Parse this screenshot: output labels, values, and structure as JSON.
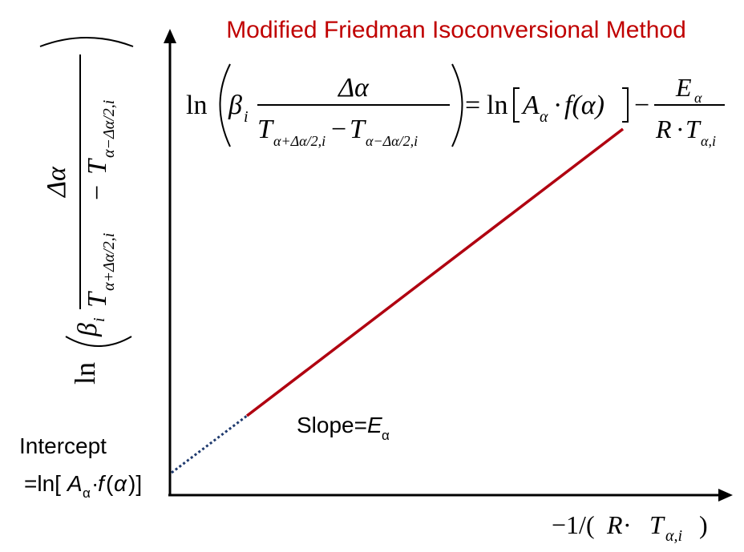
{
  "title": "Modified Friedman Isoconversional Method",
  "colors": {
    "accent": "#c00000",
    "line": "#b00010",
    "dotted": "#1f3a6e",
    "axis": "#000000"
  },
  "equation": {
    "ln": "ln",
    "beta": "β",
    "beta_sub": "i",
    "delta_alpha": "Δα",
    "T": "T",
    "t_sub1": "α+Δα/2,i",
    "minus": "−",
    "t_sub2": "α−Δα/2,i",
    "equals": "=",
    "ln2": "ln",
    "A": "A",
    "A_sub": "α",
    "dot": "·",
    "f_alpha": "f(α)",
    "E": "E",
    "E_sub": "α",
    "R": "R",
    "T_sub": "α,i"
  },
  "y_axis": {
    "ln": "ln",
    "beta": "β",
    "beta_sub": "i",
    "delta_alpha": "Δα",
    "T": "T",
    "t_sub1": "α+Δα/2,i",
    "minus": "−",
    "t_sub2": "α−Δα/2,i"
  },
  "x_axis": {
    "prefix": "−1/(",
    "R": "R",
    "dot": " · ",
    "T": "T",
    "T_sub": "α,i",
    "suffix": ")"
  },
  "slope": {
    "prefix": "Slope=",
    "E": "E",
    "E_sub": "α"
  },
  "intercept": {
    "line1": "Intercept",
    "prefix": "=ln[",
    "A": "A",
    "A_sub": "α",
    "dot": "·",
    "f": "f",
    "paren_open": "(",
    "alpha": "α",
    "suffix": ")]"
  }
}
